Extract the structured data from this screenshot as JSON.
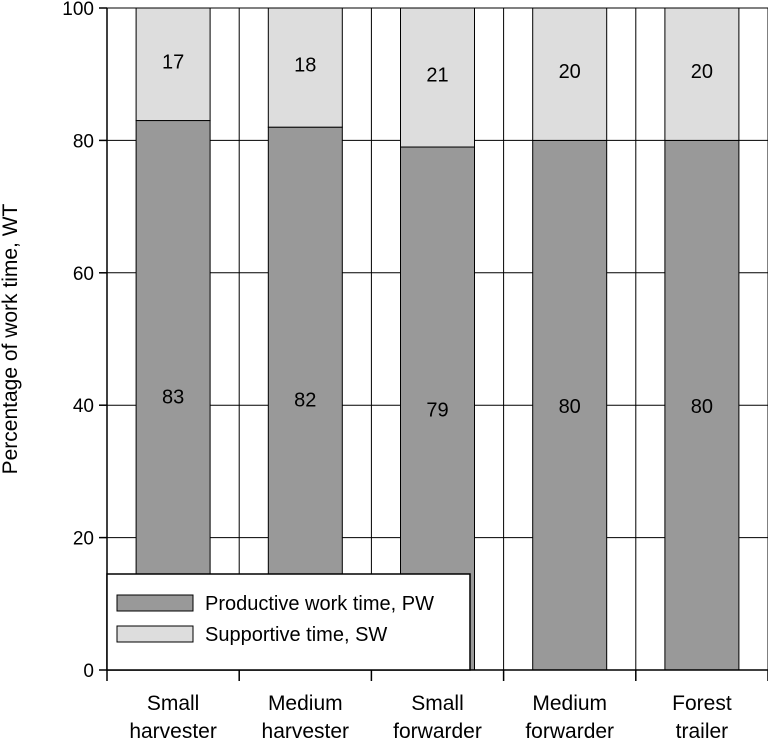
{
  "chart_data": {
    "type": "bar",
    "stacked": true,
    "orientation": "vertical",
    "categories": [
      [
        "Small",
        "harvester"
      ],
      [
        "Medium",
        "harvester"
      ],
      [
        "Small",
        "forwarder"
      ],
      [
        "Medium",
        "forwarder"
      ],
      [
        "Forest",
        "trailer"
      ]
    ],
    "series": [
      {
        "name": "Productive work time, PW",
        "color": "#999999",
        "values": [
          83,
          82,
          79,
          80,
          80
        ]
      },
      {
        "name": "Supportive time, SW",
        "color": "#dddddd",
        "values": [
          17,
          18,
          21,
          20,
          20
        ]
      }
    ],
    "title": "",
    "xlabel": "",
    "ylabel": "Percentage of work time, WT",
    "ylim": [
      0,
      100
    ],
    "yticks": [
      0,
      20,
      40,
      60,
      80,
      100
    ],
    "grid": "horizontal",
    "legend_position": "bottom-left",
    "data_labels": true
  }
}
